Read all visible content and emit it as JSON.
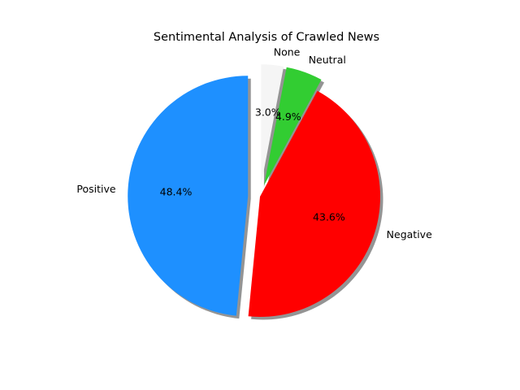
{
  "chart_data": {
    "type": "pie",
    "title": "Sentimental Analysis of Crawled News",
    "categories": [
      "Positive",
      "Negative",
      "Neutral",
      "None"
    ],
    "values": [
      48.4,
      43.6,
      4.9,
      3.0
    ],
    "percent_labels": [
      "48.4%",
      "43.6%",
      "4.9%",
      "3.0%"
    ],
    "colors": [
      "#1e90ff",
      "#ff0000",
      "#32cd32",
      "#f5f5f5"
    ],
    "exploded": [
      true,
      false,
      true,
      true
    ],
    "shadow": true,
    "start_angle_deg": 90,
    "direction": "counterclockwise"
  }
}
